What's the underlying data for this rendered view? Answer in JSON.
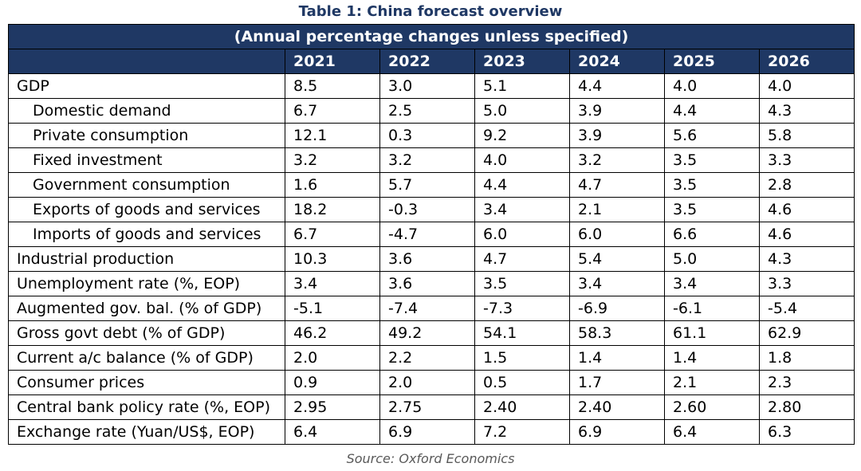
{
  "title": "Table 1: China forecast overview",
  "subtitle": "(Annual percentage changes unless specified)",
  "years": [
    "2021",
    "2022",
    "2023",
    "2024",
    "2025",
    "2026"
  ],
  "rows": [
    {
      "label": "GDP",
      "indent": false,
      "values": [
        "8.5",
        "3.0",
        "5.1",
        "4.4",
        "4.0",
        "4.0"
      ]
    },
    {
      "label": "Domestic demand",
      "indent": true,
      "values": [
        "6.7",
        "2.5",
        "5.0",
        "3.9",
        "4.4",
        "4.3"
      ]
    },
    {
      "label": "Private consumption",
      "indent": true,
      "values": [
        "12.1",
        "0.3",
        "9.2",
        "3.9",
        "5.6",
        "5.8"
      ]
    },
    {
      "label": "Fixed investment",
      "indent": true,
      "values": [
        "3.2",
        "3.2",
        "4.0",
        "3.2",
        "3.5",
        "3.3"
      ]
    },
    {
      "label": "Government consumption",
      "indent": true,
      "values": [
        "1.6",
        "5.7",
        "4.4",
        "4.7",
        "3.5",
        "2.8"
      ]
    },
    {
      "label": "Exports of goods and services",
      "indent": true,
      "values": [
        "18.2",
        "-0.3",
        "3.4",
        "2.1",
        "3.5",
        "4.6"
      ]
    },
    {
      "label": "Imports of goods and services",
      "indent": true,
      "values": [
        "6.7",
        "-4.7",
        "6.0",
        "6.0",
        "6.6",
        "4.6"
      ]
    },
    {
      "label": "Industrial production",
      "indent": false,
      "values": [
        "10.3",
        "3.6",
        "4.7",
        "5.4",
        "5.0",
        "4.3"
      ]
    },
    {
      "label": "Unemployment rate (%, EOP)",
      "indent": false,
      "values": [
        "3.4",
        "3.6",
        "3.5",
        "3.4",
        "3.4",
        "3.3"
      ]
    },
    {
      "label": "Augmented gov. bal. (% of GDP)",
      "indent": false,
      "values": [
        "-5.1",
        "-7.4",
        "-7.3",
        "-6.9",
        "-6.1",
        "-5.4"
      ]
    },
    {
      "label": "Gross govt debt (% of GDP)",
      "indent": false,
      "values": [
        "46.2",
        "49.2",
        "54.1",
        "58.3",
        "61.1",
        "62.9"
      ]
    },
    {
      "label": "Current a/c balance (% of GDP)",
      "indent": false,
      "values": [
        "2.0",
        "2.2",
        "1.5",
        "1.4",
        "1.4",
        "1.8"
      ]
    },
    {
      "label": "Consumer prices",
      "indent": false,
      "values": [
        "0.9",
        "2.0",
        "0.5",
        "1.7",
        "2.1",
        "2.3"
      ]
    },
    {
      "label": "Central bank policy rate (%, EOP)",
      "indent": false,
      "values": [
        "2.95",
        "2.75",
        "2.40",
        "2.40",
        "2.60",
        "2.80"
      ]
    },
    {
      "label": "Exchange rate (Yuan/US$, EOP)",
      "indent": false,
      "values": [
        "6.4",
        "6.9",
        "7.2",
        "6.9",
        "6.4",
        "6.3"
      ]
    }
  ],
  "source": "Source: Oxford Economics",
  "colors": {
    "header_bg": "#1f3864",
    "title": "#1f3864"
  }
}
